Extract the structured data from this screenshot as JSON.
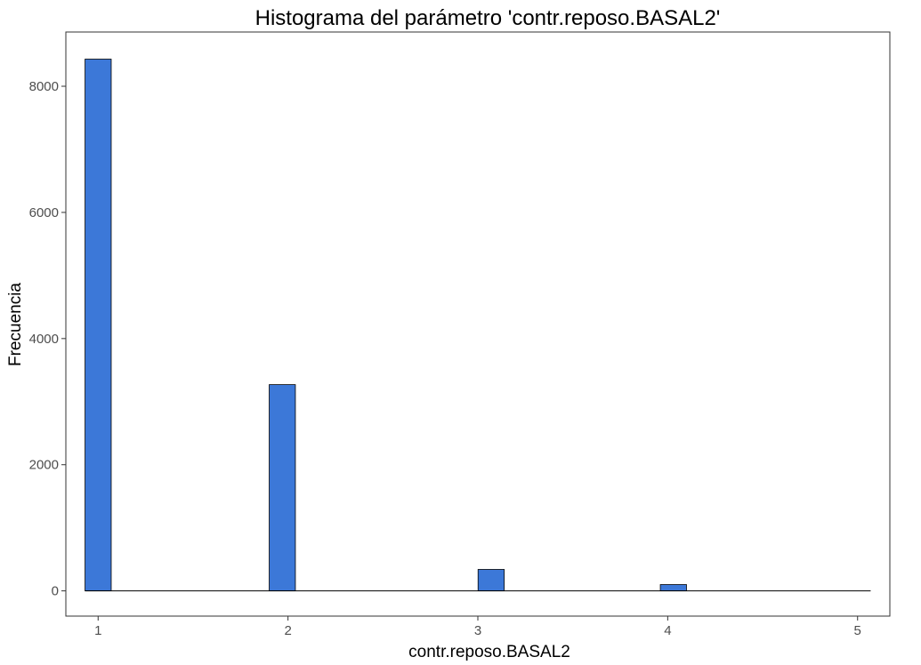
{
  "chart_data": {
    "type": "bar",
    "title": "Histograma del parámetro 'contr.reposo.BASAL2'",
    "xlabel": "contr.reposo.BASAL2",
    "ylabel": "Frecuencia",
    "xlim": [
      0.83,
      5.17
    ],
    "ylim": [
      -400,
      8860
    ],
    "x_ticks": [
      1,
      2,
      3,
      4,
      5
    ],
    "y_ticks": [
      0,
      2000,
      4000,
      6000,
      8000
    ],
    "bin_width": 0.1379,
    "bins": [
      {
        "x": 1.0,
        "count": 8430
      },
      {
        "x": 1.97,
        "count": 3270
      },
      {
        "x": 3.07,
        "count": 340
      },
      {
        "x": 4.03,
        "count": 100
      },
      {
        "x": 5.0,
        "count": 0
      }
    ],
    "fill_color": "#3c78d8",
    "edge_color": "#000000",
    "grid": false,
    "legend": "none"
  }
}
